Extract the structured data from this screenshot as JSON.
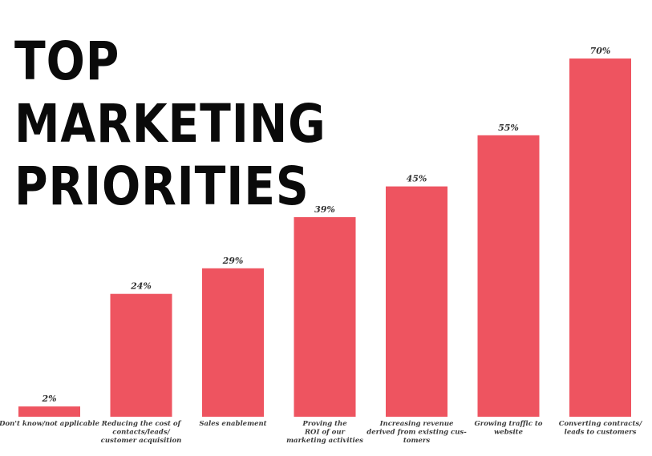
{
  "chart_data": {
    "type": "bar",
    "title": "TOP MARKETING PRIORITIES",
    "categories": [
      [
        "Don't know/not applicable"
      ],
      [
        "Reducing the cost of",
        "contacts/leads/",
        "customer acquisition"
      ],
      [
        "Sales enablement"
      ],
      [
        "Proving the",
        "ROI of our",
        "marketing activities"
      ],
      [
        "Increasing revenue",
        "derived from existing cus-",
        "tomers"
      ],
      [
        "Growing traffic to",
        "website"
      ],
      [
        "Converting contracts/",
        "leads to customers"
      ]
    ],
    "values": [
      2,
      24,
      29,
      39,
      45,
      55,
      70
    ],
    "value_labels": [
      "2%",
      "24%",
      "29%",
      "39%",
      "45%",
      "55%",
      "70%"
    ],
    "unit": "%",
    "xlabel": "",
    "ylabel": "",
    "ylim": [
      0,
      70
    ],
    "grid": false,
    "colors": {
      "bar": "#ee5460",
      "text": "#333333",
      "title": "#0a0a0a"
    }
  }
}
